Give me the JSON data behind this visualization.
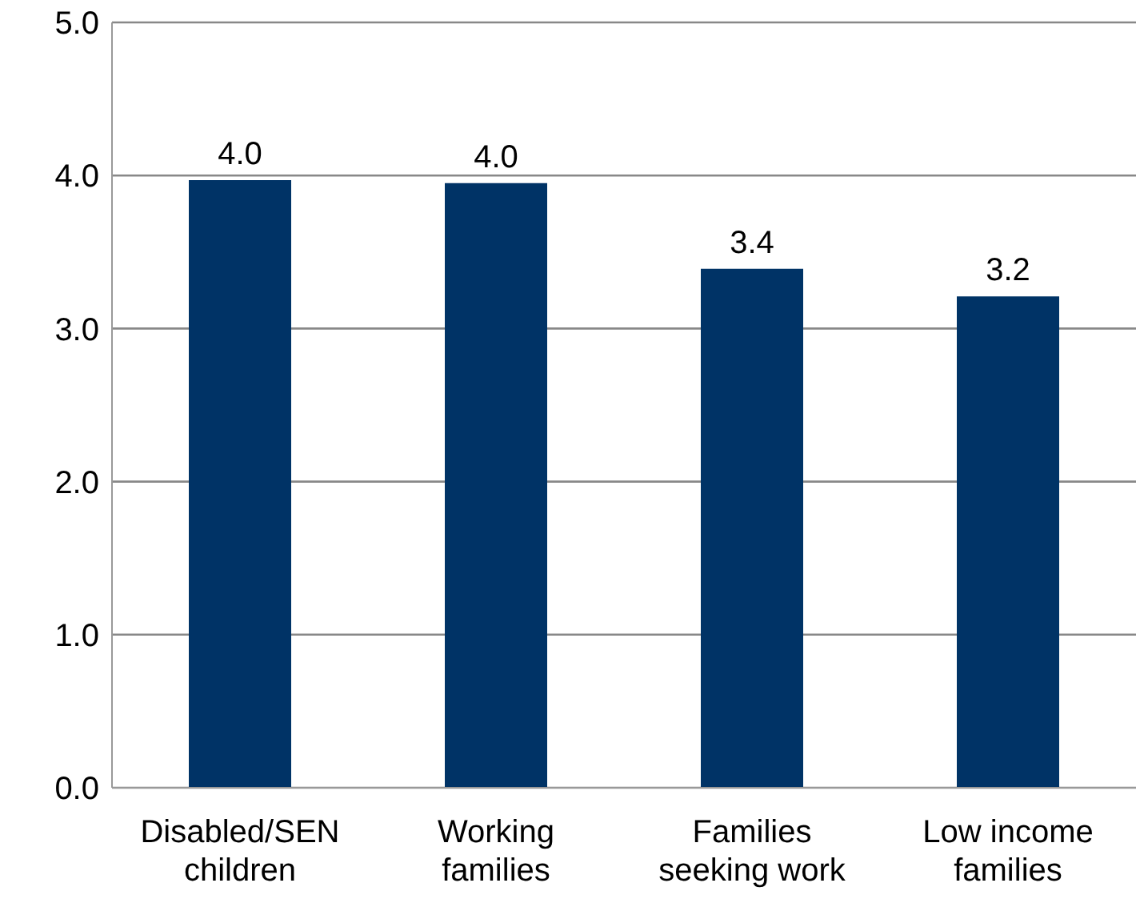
{
  "chart_data": {
    "type": "bar",
    "categories": [
      "Disabled/SEN children",
      "Working families",
      "Families seeking work",
      "Low income families"
    ],
    "values": [
      3.97,
      3.95,
      3.39,
      3.21
    ],
    "value_labels": [
      "4.0",
      "4.0",
      "3.4",
      "3.2"
    ],
    "color": "#003366",
    "ylim": [
      0,
      5
    ],
    "yticks": [
      {
        "value": 0,
        "label": "0.0"
      },
      {
        "value": 1,
        "label": "1.0"
      },
      {
        "value": 2,
        "label": "2.0"
      },
      {
        "value": 3,
        "label": "3.0"
      },
      {
        "value": 4,
        "label": "4.0"
      },
      {
        "value": 5,
        "label": "5.0"
      }
    ],
    "grid": "y",
    "legend": false
  }
}
